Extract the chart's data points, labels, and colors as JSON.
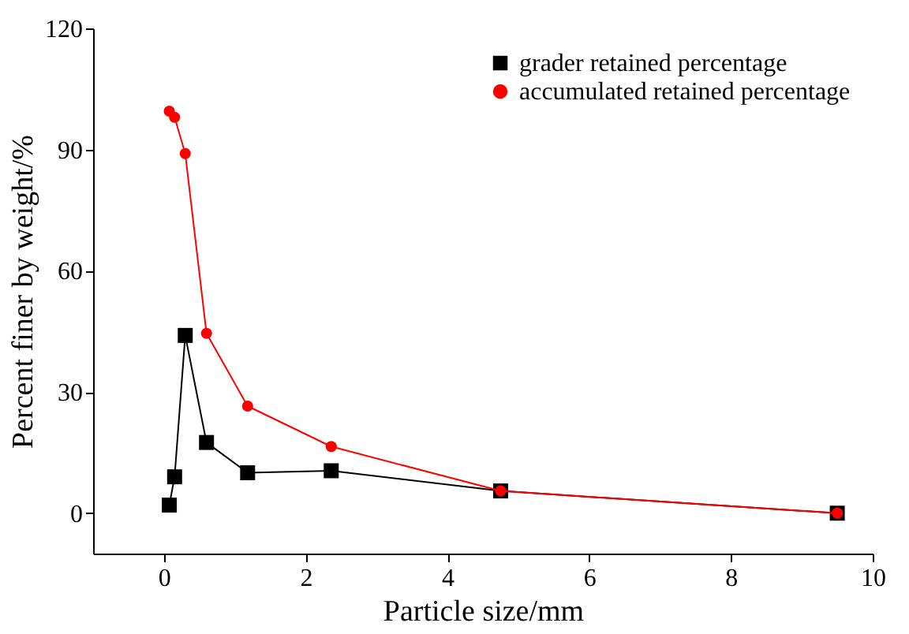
{
  "chart_data": {
    "type": "line",
    "xlabel": "Particle size/mm",
    "ylabel": "Percent finer by weight/%",
    "xlim": [
      -1,
      10
    ],
    "xticks": [
      0,
      2,
      4,
      6,
      8,
      10
    ],
    "ylim": [
      -10,
      120
    ],
    "yticks": [
      0,
      30,
      60,
      90,
      120
    ],
    "grid": false,
    "legend": "top right",
    "series": [
      {
        "name": "grader retained percentage",
        "color": "#000000",
        "marker": "square",
        "x": [
          0.075,
          0.15,
          0.3,
          0.6,
          1.18,
          2.36,
          4.75,
          9.5
        ],
        "values": [
          2,
          9,
          44,
          17.5,
          10,
          10.5,
          5.5,
          0
        ]
      },
      {
        "name": "accumulated retained percentage",
        "color": "#ff0000",
        "marker": "circle",
        "x": [
          0.075,
          0.15,
          0.3,
          0.6,
          1.18,
          2.36,
          4.75,
          9.5
        ],
        "values": [
          99.5,
          98,
          89,
          44.5,
          26.5,
          16.5,
          5.5,
          0
        ]
      }
    ]
  }
}
